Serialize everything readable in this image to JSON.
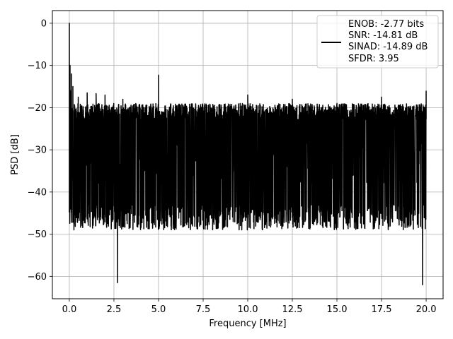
{
  "chart_data": {
    "type": "line",
    "xlabel": "Frequency [MHz]",
    "ylabel": "PSD [dB]",
    "xlim": [
      -0.95,
      20.95
    ],
    "ylim": [
      -65.3,
      3.0
    ],
    "x_ticks": [
      "0.0",
      "2.5",
      "5.0",
      "7.5",
      "10.0",
      "12.5",
      "15.0",
      "17.5",
      "20.0"
    ],
    "x_tick_values": [
      0,
      2.5,
      5,
      7.5,
      10,
      12.5,
      15,
      17.5,
      20
    ],
    "y_ticks": [
      "0",
      "−10",
      "−20",
      "−30",
      "−40",
      "−50",
      "−60"
    ],
    "y_tick_values": [
      0,
      -10,
      -20,
      -30,
      -40,
      -50,
      -60
    ],
    "grid": true,
    "legend_position": "top-right",
    "line_color": "#000000",
    "series": [
      {
        "name": "ENOB: -2.77 bits\nSNR: -14.81 dB\nSINAD: -14.89 dB\nSFDR: 3.95",
        "x_range": [
          0,
          20
        ],
        "points": [
          [
            0.0,
            0.0
          ],
          [
            0.02,
            -20.0
          ],
          [
            0.04,
            -10.0
          ],
          [
            0.06,
            -16.0
          ],
          [
            0.08,
            -38.0
          ],
          [
            0.1,
            -22.0
          ],
          [
            0.12,
            -12.0
          ],
          [
            0.15,
            -37.0
          ],
          [
            0.2,
            -15.0
          ],
          [
            0.25,
            -30.0
          ],
          [
            0.5,
            -17.5
          ],
          [
            1.0,
            -16.5
          ],
          [
            1.5,
            -16.7
          ],
          [
            2.0,
            -17.0
          ],
          [
            2.7,
            -61.5
          ],
          [
            3.0,
            -18.0
          ],
          [
            5.0,
            -12.3
          ],
          [
            7.5,
            -20.0
          ],
          [
            10.0,
            -17.0
          ],
          [
            12.5,
            -18.0
          ],
          [
            15.0,
            -19.0
          ],
          [
            17.5,
            -17.5
          ],
          [
            19.8,
            -62.0
          ],
          [
            20.0,
            -16.0
          ]
        ],
        "envelope_upper": -21,
        "envelope_lower": -46,
        "noise_mean": -33
      }
    ],
    "legend_lines": [
      "ENOB: -2.77 bits",
      "SNR: -14.81 dB",
      "SINAD: -14.89 dB",
      "SFDR: 3.95"
    ]
  }
}
